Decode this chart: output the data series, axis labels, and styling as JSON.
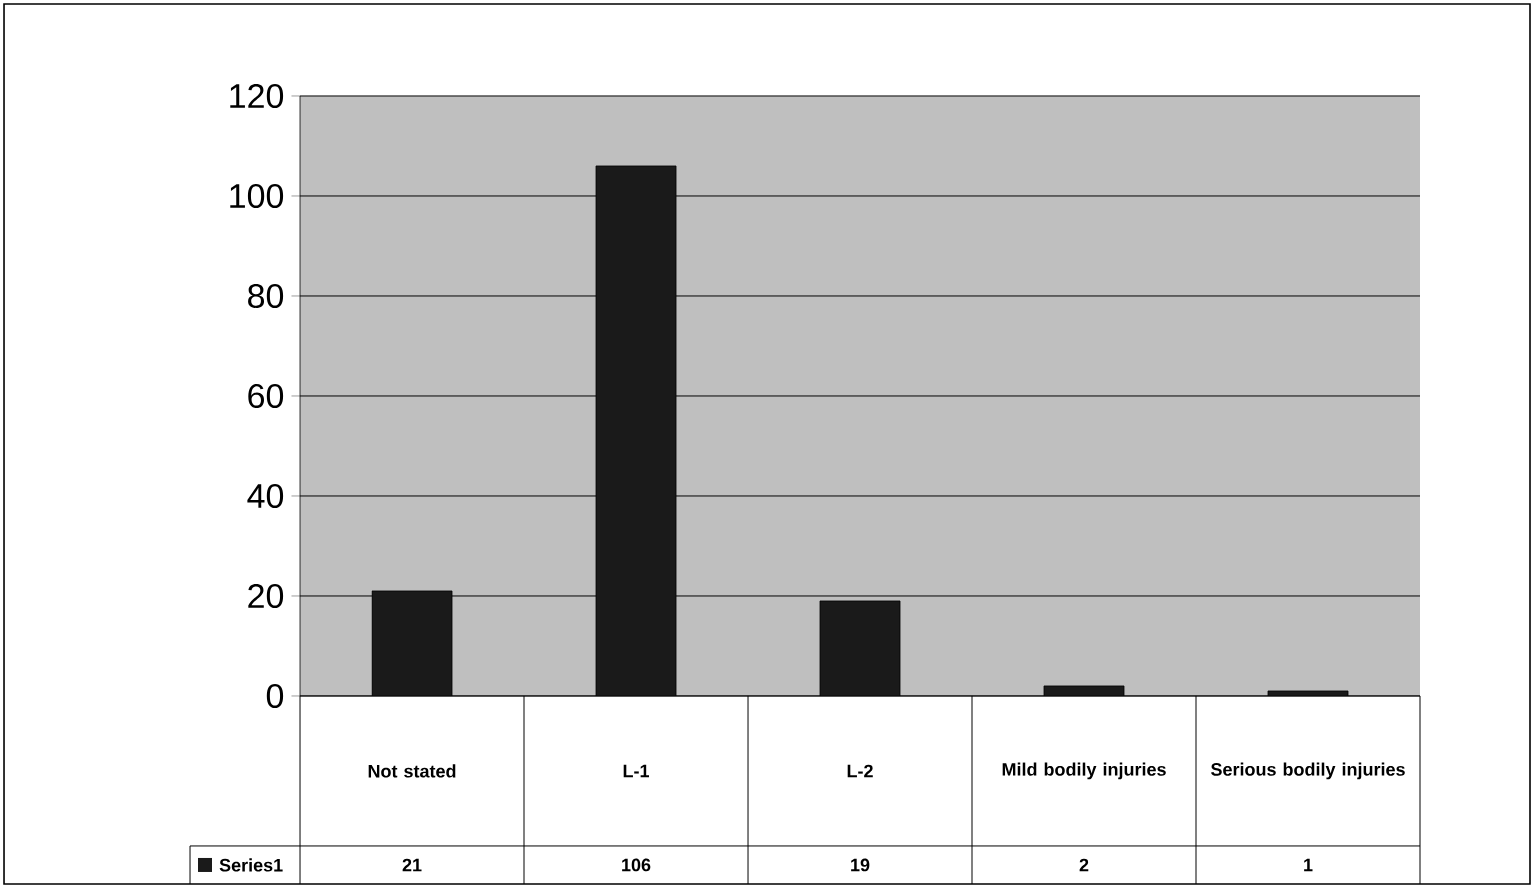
{
  "chart_data": {
    "type": "bar",
    "categories": [
      "Not stated",
      "L-1",
      "L-2",
      "Mild bodily injuries",
      "Serious bodily injuries"
    ],
    "series": [
      {
        "name": "Series1",
        "color": "#1a1a1a",
        "values": [
          21,
          106,
          19,
          2,
          1
        ]
      }
    ],
    "ylim": [
      0,
      120
    ],
    "yticks": [
      0,
      20,
      40,
      60,
      80,
      100,
      120
    ],
    "grid": "y",
    "data_labels": true
  }
}
